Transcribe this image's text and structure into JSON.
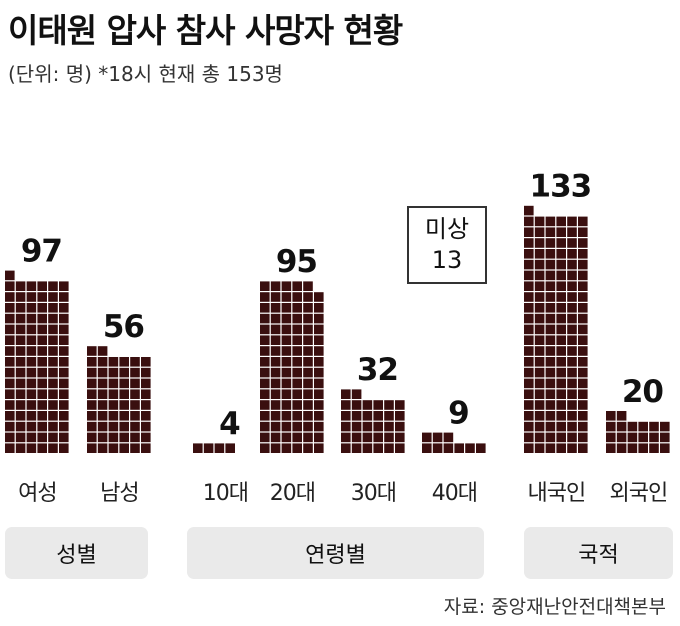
{
  "title": "이태원 압사 참사 사망자 현황",
  "subtitle": "(단위: 명)  *18시 현재 총 153명",
  "source": "자료: 중앙재난안전대책본부",
  "missing": {
    "label": "미상",
    "value": "13"
  },
  "colors": {
    "square": "#3a0f0f",
    "gap": "#ffffff",
    "group_bg": "#eaeaea",
    "text": "#222222"
  },
  "chart_data": {
    "type": "bar",
    "style": "unit squares (1 square = 1 person)",
    "unit": "명",
    "total": 153,
    "note": "*18시 현재 총 153명",
    "groups": [
      {
        "name": "성별",
        "categories": [
          "여성",
          "남성"
        ],
        "values": [
          97,
          56
        ]
      },
      {
        "name": "연령별",
        "categories": [
          "10대",
          "20대",
          "30대",
          "40대"
        ],
        "values": [
          4,
          95,
          32,
          9
        ]
      },
      {
        "name": "국적",
        "categories": [
          "내국인",
          "외국인"
        ],
        "values": [
          133,
          20
        ]
      }
    ],
    "annotations": [
      {
        "label": "미상",
        "value": 13
      }
    ]
  }
}
